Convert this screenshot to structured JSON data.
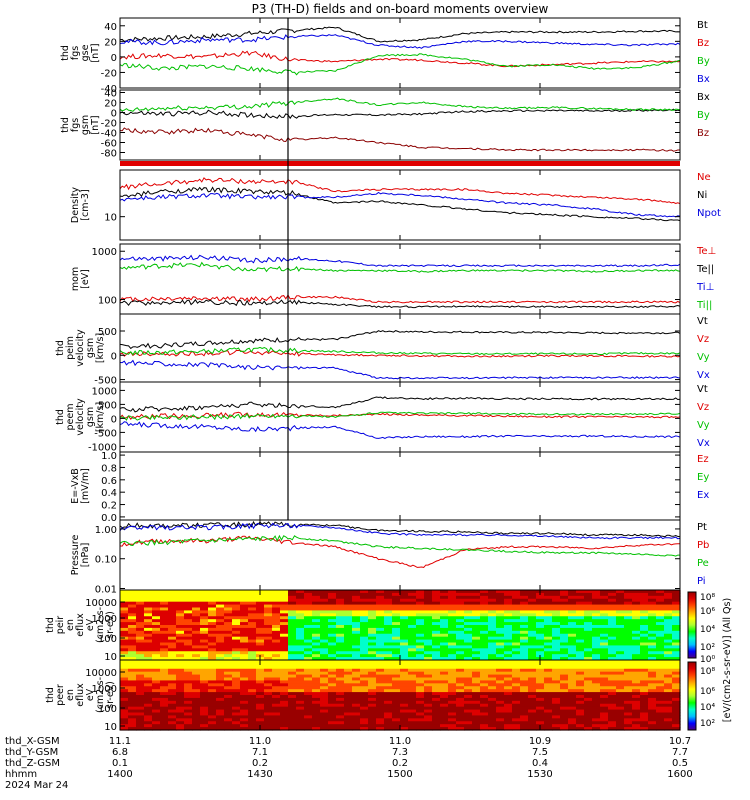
{
  "chart_data": {
    "type": "line",
    "title": "P3 (TH-D) fields and on-board moments overview",
    "x_ticks": [
      "1400",
      "1430",
      "1500",
      "1530",
      "1600"
    ],
    "panels": [
      {
        "id": "fgs_gse",
        "ylabel": [
          "thd",
          "fgs",
          "gse",
          "[nT]"
        ],
        "ylim": [
          -40,
          50
        ],
        "yticks": [
          "40",
          "20",
          "0",
          "-20",
          "-40"
        ],
        "ytick_values": [
          40,
          20,
          0,
          -20,
          -40
        ],
        "scale": "linear",
        "legend": [
          {
            "name": "Bt",
            "color": "#000000"
          },
          {
            "name": "Bz",
            "color": "#e00000"
          },
          {
            "name": "By",
            "color": "#00c000"
          },
          {
            "name": "Bx",
            "color": "#0000e0"
          }
        ],
        "series": [
          {
            "name": "Bt",
            "color": "#000000",
            "values": [
              22,
              24,
              26,
              30,
              34,
              38,
              20,
              22,
              30,
              32,
              32,
              32,
              33,
              33
            ]
          },
          {
            "name": "Bz",
            "color": "#e00000",
            "values": [
              0,
              2,
              0,
              5,
              -4,
              -6,
              -3,
              -4,
              -8,
              -12,
              -10,
              -8,
              -6,
              -6
            ]
          },
          {
            "name": "By",
            "color": "#00c000",
            "values": [
              -10,
              -15,
              -12,
              -15,
              -20,
              -18,
              2,
              3,
              -3,
              -12,
              -10,
              -15,
              -14,
              -5
            ]
          },
          {
            "name": "Bx",
            "color": "#0000e0",
            "values": [
              20,
              18,
              22,
              22,
              26,
              28,
              15,
              12,
              20,
              20,
              18,
              16,
              15,
              17
            ]
          }
        ]
      },
      {
        "id": "fgs_gsm",
        "ylabel": [
          "thd",
          "fgs",
          "gsm",
          "[nT]"
        ],
        "ylim": [
          -95,
          45
        ],
        "yticks": [
          "40",
          "20",
          "0",
          "-20",
          "-40",
          "-60",
          "-80"
        ],
        "ytick_values": [
          40,
          20,
          0,
          -20,
          -40,
          -60,
          -80
        ],
        "scale": "linear",
        "legend": [
          {
            "name": "Bx",
            "color": "#000000"
          },
          {
            "name": "By",
            "color": "#00c000"
          },
          {
            "name": "Bz",
            "color": "#8b0000"
          }
        ],
        "series": [
          {
            "name": "Bx",
            "color": "#000000",
            "values": [
              0,
              -3,
              0,
              -5,
              -8,
              -4,
              -5,
              -3,
              2,
              3,
              4,
              3,
              4,
              5
            ]
          },
          {
            "name": "By",
            "color": "#00c000",
            "values": [
              3,
              8,
              10,
              12,
              20,
              28,
              15,
              20,
              12,
              8,
              10,
              8,
              6,
              6
            ]
          },
          {
            "name": "Bz",
            "color": "#8b0000",
            "values": [
              -35,
              -40,
              -35,
              -45,
              -55,
              -50,
              -60,
              -70,
              -72,
              -75,
              -75,
              -75,
              -75,
              -76
            ]
          }
        ]
      },
      {
        "id": "density",
        "ylabel": [
          "Density",
          "[cm-3]"
        ],
        "ylim": [
          0.4,
          2.2
        ],
        "yticks": [
          "10"
        ],
        "ytick_values": [
          1
        ],
        "scale": "log",
        "legend": [
          {
            "name": "Ne",
            "color": "#e00000"
          },
          {
            "name": "Ni",
            "color": "#000000"
          },
          {
            "name": "Npot",
            "color": "#0000e0"
          }
        ],
        "series": [
          {
            "name": "Ne",
            "color": "#e00000",
            "values": [
              1.75,
              1.85,
              1.95,
              1.9,
              1.9,
              1.65,
              1.7,
              1.7,
              1.7,
              1.6,
              1.55,
              1.5,
              1.45,
              1.35
            ]
          },
          {
            "name": "Ni",
            "color": "#000000",
            "values": [
              1.5,
              1.65,
              1.7,
              1.65,
              1.6,
              1.35,
              1.4,
              1.3,
              1.2,
              1.1,
              1.05,
              1.0,
              0.95,
              0.9
            ]
          },
          {
            "name": "Npot",
            "color": "#0000e0",
            "values": [
              1.45,
              1.5,
              1.55,
              1.5,
              1.5,
              1.5,
              1.6,
              1.55,
              1.45,
              1.35,
              1.3,
              1.2,
              1.05,
              1.0
            ]
          }
        ]
      },
      {
        "id": "temperature",
        "ylabel": [
          "mom",
          "[eV]"
        ],
        "ylim": [
          1.7,
          3.15
        ],
        "yticks": [
          "1000",
          "100"
        ],
        "ytick_values": [
          3,
          2
        ],
        "scale": "log",
        "legend": [
          {
            "name": "Te⊥",
            "color": "#e00000"
          },
          {
            "name": "Te||",
            "color": "#000000"
          },
          {
            "name": "Ti⊥",
            "color": "#0000e0"
          },
          {
            "name": "Ti||",
            "color": "#00c000"
          }
        ],
        "series": [
          {
            "name": "Te⊥",
            "color": "#e00000",
            "values": [
              2.0,
              2.02,
              2.03,
              2.0,
              2.05,
              2.05,
              1.95,
              1.95,
              1.95,
              1.95,
              1.95,
              1.95,
              1.95,
              1.95
            ]
          },
          {
            "name": "Te||",
            "color": "#000000",
            "values": [
              1.92,
              1.93,
              1.95,
              1.92,
              1.95,
              1.9,
              1.85,
              1.85,
              1.86,
              1.85,
              1.85,
              1.85,
              1.85,
              1.86
            ]
          },
          {
            "name": "Ti⊥",
            "color": "#0000e0",
            "values": [
              2.85,
              2.85,
              2.88,
              2.8,
              2.85,
              2.8,
              2.7,
              2.7,
              2.7,
              2.7,
              2.7,
              2.7,
              2.7,
              2.72
            ]
          },
          {
            "name": "Ti||",
            "color": "#00c000",
            "values": [
              2.65,
              2.7,
              2.72,
              2.6,
              2.65,
              2.6,
              2.6,
              2.58,
              2.6,
              2.6,
              2.6,
              2.58,
              2.6,
              2.6
            ]
          }
        ]
      },
      {
        "id": "ion_velocity",
        "ylabel": [
          "thd",
          "peim",
          "velocity",
          "gsm",
          "[km/s]"
        ],
        "ylim": [
          -550,
          850
        ],
        "yticks": [
          "500",
          "0",
          "-500"
        ],
        "ytick_values": [
          500,
          0,
          -500
        ],
        "scale": "linear",
        "legend": [
          {
            "name": "Vt",
            "color": "#000000"
          },
          {
            "name": "Vz",
            "color": "#e00000"
          },
          {
            "name": "Vy",
            "color": "#00c000"
          },
          {
            "name": "Vx",
            "color": "#0000e0"
          }
        ],
        "series": [
          {
            "name": "Vt",
            "color": "#000000",
            "values": [
              180,
              200,
              250,
              300,
              320,
              330,
              500,
              480,
              480,
              470,
              470,
              460,
              460,
              460
            ]
          },
          {
            "name": "Vz",
            "color": "#e00000",
            "values": [
              20,
              30,
              40,
              60,
              40,
              10,
              0,
              -10,
              -20,
              -20,
              -10,
              -10,
              -20,
              -20
            ]
          },
          {
            "name": "Vy",
            "color": "#00c000",
            "values": [
              50,
              60,
              80,
              120,
              100,
              80,
              50,
              40,
              30,
              30,
              30,
              30,
              40,
              40
            ]
          },
          {
            "name": "Vx",
            "color": "#0000e0",
            "values": [
              -150,
              -170,
              -200,
              -250,
              -250,
              -260,
              -470,
              -470,
              -470,
              -460,
              -460,
              -460,
              -460,
              -460
            ]
          }
        ]
      },
      {
        "id": "electron_velocity",
        "ylabel": [
          "thd",
          "peem",
          "velocity",
          "gsm",
          "[km/s]"
        ],
        "ylim": [
          -1200,
          1300
        ],
        "yticks": [
          "1000",
          "500",
          "0",
          "-500",
          "-1000"
        ],
        "ytick_values": [
          1000,
          500,
          0,
          -500,
          -1000
        ],
        "scale": "linear",
        "legend": [
          {
            "name": "Vt",
            "color": "#000000"
          },
          {
            "name": "Vz",
            "color": "#e00000"
          },
          {
            "name": "Vy",
            "color": "#00c000"
          },
          {
            "name": "Vx",
            "color": "#0000e0"
          }
        ],
        "series": [
          {
            "name": "Vt",
            "color": "#000000",
            "values": [
              300,
              350,
              400,
              500,
              450,
              400,
              750,
              700,
              720,
              700,
              700,
              690,
              700,
              700
            ]
          },
          {
            "name": "Vz",
            "color": "#e00000",
            "values": [
              50,
              80,
              100,
              150,
              120,
              100,
              150,
              120,
              100,
              80,
              60,
              60,
              50,
              50
            ]
          },
          {
            "name": "Vy",
            "color": "#00c000",
            "values": [
              0,
              50,
              50,
              80,
              100,
              50,
              200,
              180,
              180,
              160,
              150,
              150,
              160,
              160
            ]
          },
          {
            "name": "Vx",
            "color": "#0000e0",
            "values": [
              -200,
              -250,
              -300,
              -400,
              -350,
              -300,
              -700,
              -650,
              -650,
              -630,
              -640,
              -630,
              -650,
              -650
            ]
          }
        ]
      },
      {
        "id": "efield",
        "ylabel": [
          "E=-VxB",
          "[mV/m]"
        ],
        "ylim": [
          -0.05,
          1.05
        ],
        "yticks": [
          "1.0",
          "0.8",
          "0.6",
          "0.4",
          "0.2",
          "0.0"
        ],
        "ytick_values": [
          1.0,
          0.8,
          0.6,
          0.4,
          0.2,
          0.0
        ],
        "scale": "linear",
        "legend": [
          {
            "name": "Ez",
            "color": "#e00000"
          },
          {
            "name": "Ey",
            "color": "#00c000"
          },
          {
            "name": "Ex",
            "color": "#0000e0"
          }
        ],
        "series": []
      },
      {
        "id": "pressure",
        "ylabel": [
          "Pressure",
          "[nPa]"
        ],
        "ylim": [
          -2.05,
          0.3
        ],
        "yticks": [
          "1.00",
          "0.10",
          "0.01"
        ],
        "ytick_values": [
          0,
          -1,
          -2
        ],
        "scale": "log",
        "legend": [
          {
            "name": "Pt",
            "color": "#000000"
          },
          {
            "name": "Pb",
            "color": "#e00000"
          },
          {
            "name": "Pe",
            "color": "#00c000"
          },
          {
            "name": "Pi",
            "color": "#0000e0"
          }
        ],
        "series": [
          {
            "name": "Pt",
            "color": "#000000",
            "values": [
              0.1,
              0.12,
              0.12,
              0.15,
              0.15,
              0.12,
              -0.05,
              -0.08,
              -0.1,
              -0.15,
              -0.15,
              -0.2,
              -0.2,
              -0.25
            ]
          },
          {
            "name": "Pb",
            "color": "#e00000",
            "values": [
              -0.5,
              -0.4,
              -0.4,
              -0.3,
              -0.45,
              -0.6,
              -1.0,
              -1.3,
              -0.7,
              -0.6,
              -0.6,
              -0.65,
              -0.55,
              -0.5
            ]
          },
          {
            "name": "Pe",
            "color": "#00c000",
            "values": [
              -0.5,
              -0.45,
              -0.4,
              -0.35,
              -0.3,
              -0.4,
              -0.6,
              -0.65,
              -0.7,
              -0.75,
              -0.8,
              -0.8,
              -0.85,
              -0.9
            ]
          },
          {
            "name": "Pi",
            "color": "#0000e0",
            "values": [
              0.0,
              0.05,
              0.05,
              0.1,
              0.12,
              0.05,
              -0.15,
              -0.2,
              -0.2,
              -0.2,
              -0.25,
              -0.3,
              -0.3,
              -0.3
            ]
          }
        ]
      },
      {
        "id": "ion_spectrogram",
        "type": "heatmap",
        "ylabel": [
          "thd",
          "peir",
          "en",
          "eflux",
          "eV",
          "(cm2-s-",
          "sr-eV)"
        ],
        "yticks": [
          "10000",
          "1000",
          "100",
          "10"
        ]
      },
      {
        "id": "electron_spectrogram",
        "type": "heatmap",
        "ylabel": [
          "thd",
          "peer",
          "en",
          "eflux",
          "eV",
          "(cm2-s-",
          "sr-eV)"
        ],
        "yticks": [
          "10000",
          "1000",
          "100",
          "10"
        ]
      }
    ],
    "colorbar": {
      "label": "[eV/(cm2-s-sr-eV)] (All Qs)",
      "ticks": [
        "10⁸",
        "10⁶",
        "10⁴",
        "10²",
        "10⁰",
        "10⁸",
        "10⁶",
        "10⁴",
        "10²"
      ]
    },
    "ephemeris": {
      "rows": [
        {
          "label": "thd_X-GSM",
          "values": [
            "11.1",
            "11.0",
            "11.0",
            "10.9",
            "10.7"
          ]
        },
        {
          "label": "thd_Y-GSM",
          "values": [
            "6.8",
            "7.1",
            "7.3",
            "7.5",
            "7.7"
          ]
        },
        {
          "label": "thd_Z-GSM",
          "values": [
            "0.1",
            "0.2",
            "0.2",
            "0.4",
            "0.5"
          ]
        },
        {
          "label": "hhmm",
          "values": [
            "1400",
            "1430",
            "1500",
            "1530",
            "1600"
          ]
        }
      ],
      "date": "2024 Mar 24"
    },
    "event_marker_x": 0.3
  }
}
